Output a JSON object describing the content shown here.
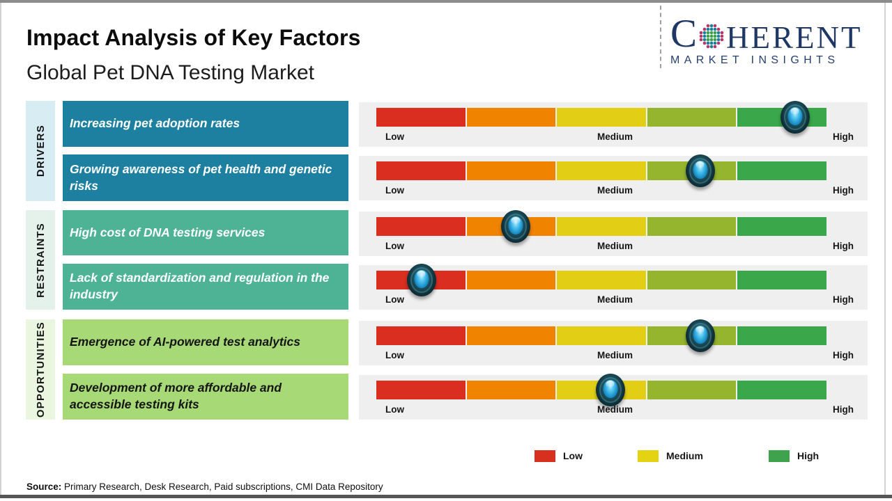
{
  "header": {
    "title": "Impact Analysis of Key Factors",
    "subtitle": "Global Pet DNA Testing Market"
  },
  "logo": {
    "part1": "C",
    "part2": "HERENT",
    "tagline": "MARKET INSIGHTS",
    "brand_color": "#1e3765"
  },
  "scale_labels": {
    "low": "Low",
    "medium": "Medium",
    "high": "High"
  },
  "legend": [
    {
      "label": "Low",
      "color": "#d7301f"
    },
    {
      "label": "Medium",
      "color": "#e3d312"
    },
    {
      "label": "High",
      "color": "#3fa34d"
    }
  ],
  "source": {
    "prefix": "Source:",
    "text": " Primary Research, Desk Research, Paid subscriptions, CMI Data Repository"
  },
  "chart_data": {
    "type": "bar",
    "title": "Impact Analysis of Key Factors",
    "subtitle": "Global Pet DNA Testing Market",
    "scale": [
      "Low",
      "Medium",
      "High"
    ],
    "segment_colors": [
      "#d92e20",
      "#f08300",
      "#e2cf15",
      "#96b52f",
      "#3aa74a"
    ],
    "panel_bg": "#efeff0",
    "groups": [
      {
        "category": "DRIVERS",
        "card_color": "#1e80a0",
        "label_bg": "#d8ecf4",
        "factors": [
          {
            "label": "Increasing pet adoption rates",
            "impact_level": "High",
            "impact_pct": 93
          },
          {
            "label": "Growing awareness of pet health and genetic risks",
            "impact_level": "Medium-High",
            "impact_pct": 72
          }
        ]
      },
      {
        "category": "RESTRAINTS",
        "card_color": "#4db394",
        "label_bg": "#e5f2ec",
        "factors": [
          {
            "label": "High cost of DNA testing services",
            "impact_level": "Low-Medium",
            "impact_pct": 31
          },
          {
            "label": "Lack of standardization and regulation in the industry",
            "impact_level": "Low",
            "impact_pct": 10
          }
        ]
      },
      {
        "category": "OPPORTUNITIES",
        "card_color": "#a7d977",
        "label_bg": "#ebf6e1",
        "factors": [
          {
            "label": "Emergence of AI-powered test analytics",
            "impact_level": "Medium-High",
            "impact_pct": 72
          },
          {
            "label": "Development of more affordable and accessible testing kits",
            "impact_level": "Medium",
            "impact_pct": 52
          }
        ]
      }
    ]
  }
}
